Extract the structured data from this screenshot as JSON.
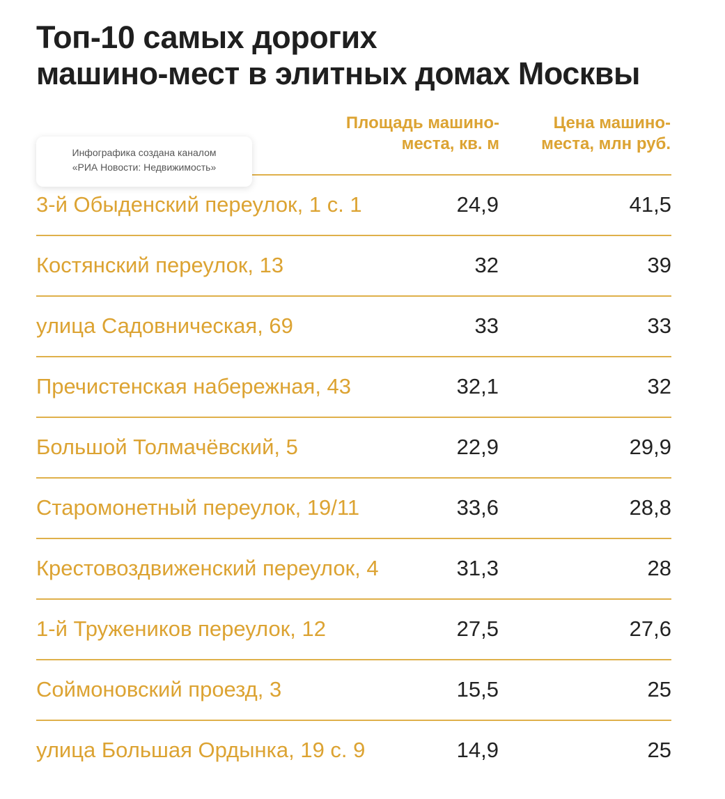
{
  "title": {
    "line1": "Топ-10 самых дорогих",
    "line2": "машино-мест в элитных домах Москвы"
  },
  "badge": {
    "line1": "Инфографика создана каналом",
    "line2": "«РИА Новости: Недвижимость»"
  },
  "columns": {
    "area": {
      "line1": "Площадь машино-",
      "line2": "места, кв. м"
    },
    "price": {
      "line1": "Цена машино-",
      "line2": "места, млн руб."
    }
  },
  "accent_color": "#dca332",
  "rows": [
    {
      "address": "3-й Обыденский переулок, 1 с. 1",
      "area": "24,9",
      "price": "41,5"
    },
    {
      "address": "Костянский переулок, 13",
      "area": "32",
      "price": "39"
    },
    {
      "address": "улица Садовническая, 69",
      "area": "33",
      "price": "33"
    },
    {
      "address": "Пречистенская набережная, 43",
      "area": "32,1",
      "price": "32"
    },
    {
      "address": "Большой Толмачёвский, 5",
      "area": "22,9",
      "price": "29,9"
    },
    {
      "address": "Старомонетный переулок, 19/11",
      "area": "33,6",
      "price": "28,8"
    },
    {
      "address": "Крестовоздвиженский переулок, 4",
      "area": "31,3",
      "price": "28"
    },
    {
      "address": "1-й Тружеников переулок, 12",
      "area": "27,5",
      "price": "27,6"
    },
    {
      "address": "Соймоновский проезд, 3",
      "area": "15,5",
      "price": "25"
    },
    {
      "address": "улица Большая Ордынка, 19 с. 9",
      "area": "14,9",
      "price": "25"
    }
  ]
}
